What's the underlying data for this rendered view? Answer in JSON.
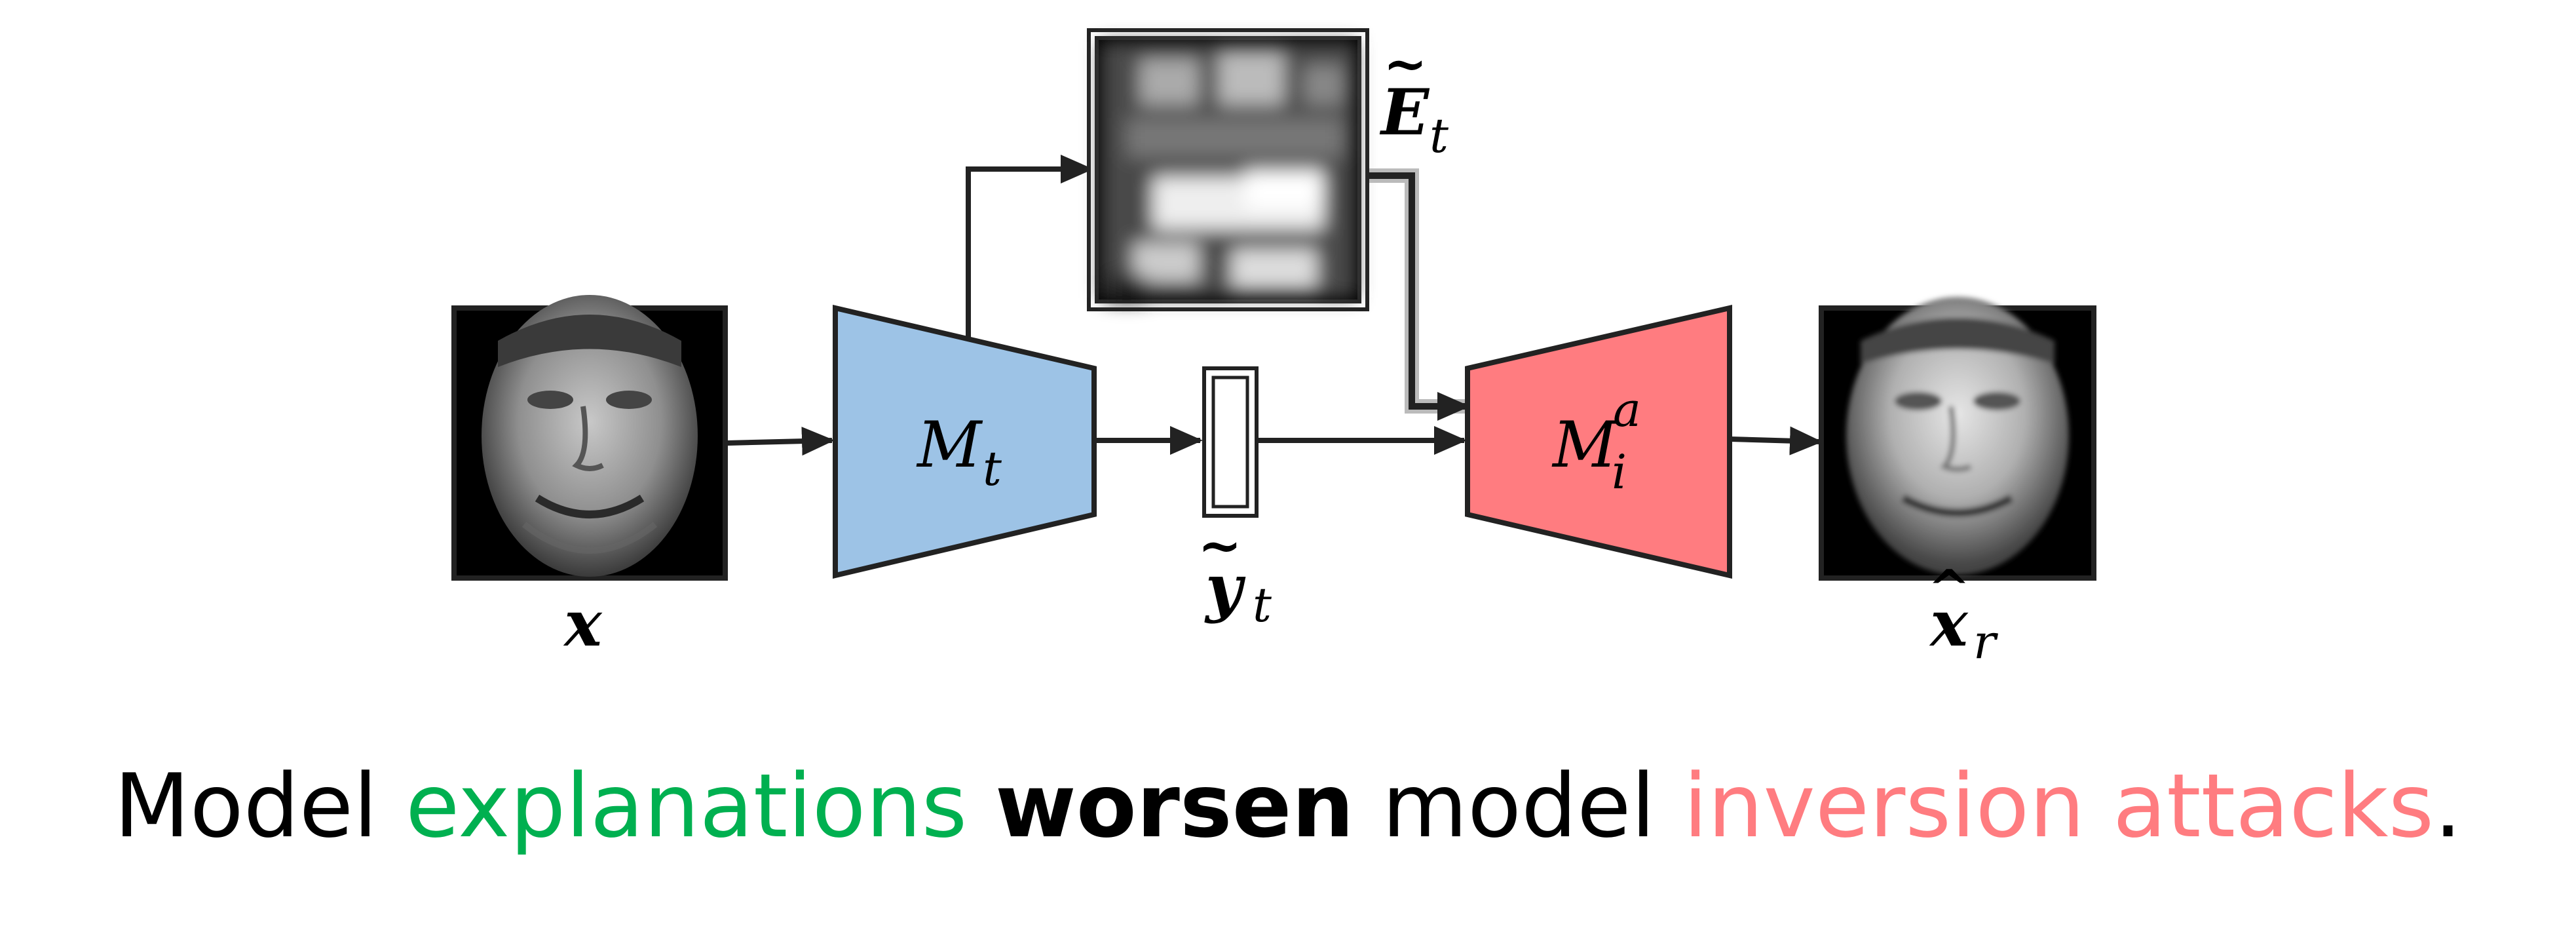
{
  "labels": {
    "input": "x",
    "target_model": "M",
    "target_model_sub": "t",
    "prediction": "y",
    "prediction_sub": "t",
    "explanation": "E",
    "explanation_sub": "t",
    "inversion_model": "M",
    "inversion_model_sub": "i",
    "inversion_model_sup": "a",
    "reconstruction": "x",
    "reconstruction_sub": "r"
  },
  "caption": {
    "part1": "Model ",
    "part2": "explanations",
    "part3": " ",
    "part4": "worsen",
    "part5": " model ",
    "part6": "inversion attacks",
    "part7": "."
  },
  "colors": {
    "target_model_fill": "#9DC3E6",
    "inversion_model_fill": "#FF7C80",
    "explanations_text": "#00B050",
    "inversion_text": "#FF7C80"
  },
  "icons": {
    "input_face": "face-photo-icon",
    "explanation_map": "saliency-heatmap-icon",
    "reconstructed_face": "reconstructed-face-icon"
  }
}
